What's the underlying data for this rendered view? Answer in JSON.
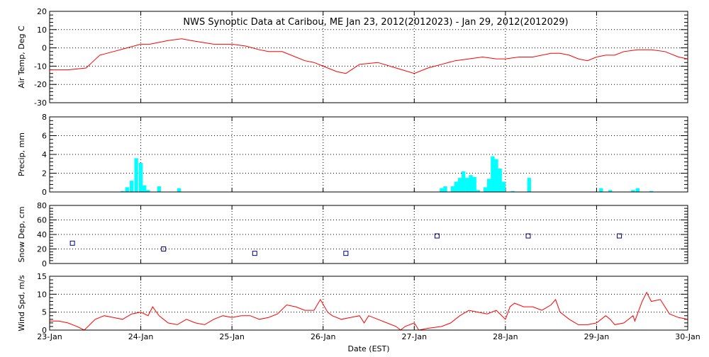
{
  "title": "NWS Synoptic Data at Caribou, ME   Jan 23, 2012(2012023) - Jan 29, 2012(2012029)",
  "xlabel": "Date (EST)",
  "x_ticks": [
    "23-Jan",
    "24-Jan",
    "25-Jan",
    "26-Jan",
    "27-Jan",
    "28-Jan",
    "29-Jan",
    "30-Jan"
  ],
  "colors": {
    "temp": "#ff0000",
    "precip": "#00ffff",
    "snow": "#000080",
    "wind": "#ff0000"
  },
  "chart_data": [
    {
      "type": "line",
      "ylabel": "Air Temp, Deg C",
      "ylim": [
        -30,
        20
      ],
      "yticks": [
        "-30",
        "-20",
        "-10",
        "0",
        "10",
        "20"
      ],
      "grid": true,
      "x_unit": "days since Jan 23, 2012 00:00 EST",
      "x": [
        0.0,
        0.2,
        0.4,
        0.55,
        0.7,
        0.85,
        1.0,
        1.1,
        1.3,
        1.45,
        1.55,
        1.8,
        2.0,
        2.15,
        2.3,
        2.4,
        2.55,
        2.7,
        2.8,
        2.9,
        3.0,
        3.15,
        3.25,
        3.4,
        3.6,
        3.8,
        4.0,
        4.15,
        4.3,
        4.45,
        4.6,
        4.75,
        4.9,
        5.0,
        5.15,
        5.3,
        5.5,
        5.6,
        5.7,
        5.8,
        5.9,
        6.0,
        6.1,
        6.2,
        6.3,
        6.45,
        6.6,
        6.75,
        6.9,
        7.0
      ],
      "values": [
        -12,
        -12,
        -11,
        -4,
        -2,
        0,
        2,
        2,
        4,
        5,
        4,
        2,
        2,
        1,
        -1,
        -2,
        -2,
        -5,
        -7,
        -8,
        -10,
        -13,
        -14,
        -9,
        -8,
        -11,
        -14,
        -11,
        -9,
        -7,
        -6,
        -5,
        -6,
        -6,
        -5,
        -5,
        -3,
        -3,
        -4,
        -6,
        -7,
        -5,
        -4,
        -4,
        -2,
        -1,
        -1,
        -2,
        -5,
        -6
      ]
    },
    {
      "type": "bar",
      "ylabel": "Precip, mm",
      "ylim": [
        0,
        8
      ],
      "yticks": [
        "0",
        "2",
        "4",
        "6",
        "8"
      ],
      "grid": true,
      "x_unit": "days since Jan 23, 2012 00:00 EST",
      "x": [
        0.8,
        0.85,
        0.9,
        0.95,
        1.0,
        1.04,
        1.08,
        1.2,
        1.42,
        4.3,
        4.34,
        4.42,
        4.46,
        4.5,
        4.54,
        4.58,
        4.62,
        4.66,
        4.7,
        4.78,
        4.82,
        4.86,
        4.9,
        4.94,
        4.98,
        5.08,
        5.26,
        6.05,
        6.15,
        6.4,
        6.45,
        6.6
      ],
      "values": [
        0.1,
        0.5,
        1.2,
        3.6,
        3.1,
        0.7,
        0.2,
        0.6,
        0.4,
        0.4,
        0.6,
        0.6,
        1.1,
        1.5,
        2.2,
        1.5,
        1.8,
        1.6,
        0.2,
        0.5,
        1.4,
        3.8,
        3.5,
        2.5,
        1.1,
        0.1,
        1.5,
        0.4,
        0.2,
        0.2,
        0.4,
        0.1
      ]
    },
    {
      "type": "scatter",
      "ylabel": "Snow Dep, cm",
      "ylim": [
        0,
        80
      ],
      "yticks": [
        "0",
        "20",
        "40",
        "60",
        "80"
      ],
      "grid": true,
      "x_unit": "days since Jan 23, 2012 00:00 EST",
      "x": [
        0.25,
        1.25,
        2.25,
        3.25,
        4.25,
        5.25,
        6.25
      ],
      "values": [
        28,
        20,
        14,
        14,
        38,
        38,
        38
      ]
    },
    {
      "type": "line",
      "ylabel": "Wind Spd, m/s",
      "ylim": [
        0,
        15
      ],
      "yticks": [
        "0",
        "5",
        "10",
        "15"
      ],
      "grid": true,
      "x_unit": "days since Jan 23, 2012 00:00 EST",
      "x": [
        0.0,
        0.1,
        0.2,
        0.3,
        0.38,
        0.5,
        0.6,
        0.7,
        0.8,
        0.9,
        1.0,
        1.08,
        1.13,
        1.2,
        1.3,
        1.4,
        1.5,
        1.6,
        1.7,
        1.8,
        1.9,
        2.0,
        2.1,
        2.2,
        2.3,
        2.4,
        2.5,
        2.6,
        2.7,
        2.8,
        2.9,
        2.97,
        3.05,
        3.1,
        3.2,
        3.3,
        3.4,
        3.45,
        3.5,
        3.6,
        3.7,
        3.8,
        3.85,
        3.9,
        4.0,
        4.05,
        4.15,
        4.3,
        4.4,
        4.5,
        4.6,
        4.7,
        4.8,
        4.9,
        5.0,
        5.05,
        5.1,
        5.2,
        5.3,
        5.4,
        5.5,
        5.55,
        5.6,
        5.7,
        5.8,
        5.9,
        6.0,
        6.1,
        6.15,
        6.2,
        6.3,
        6.4,
        6.42,
        6.5,
        6.55,
        6.6,
        6.7,
        6.8,
        6.9,
        7.0
      ],
      "values": [
        2.5,
        2.5,
        2.0,
        1.0,
        0.0,
        3.0,
        4.0,
        3.5,
        3.0,
        4.5,
        5.0,
        4.0,
        6.5,
        4.0,
        2.0,
        1.5,
        3.0,
        2.0,
        1.5,
        3.0,
        4.0,
        3.5,
        4.0,
        4.0,
        3.0,
        3.5,
        4.5,
        7.0,
        6.5,
        5.5,
        5.5,
        8.5,
        5.0,
        4.0,
        3.0,
        3.5,
        4.0,
        2.0,
        4.0,
        3.0,
        2.0,
        1.0,
        0.0,
        1.0,
        2.0,
        0.0,
        0.5,
        1.0,
        2.0,
        4.0,
        5.5,
        5.0,
        4.5,
        5.5,
        3.0,
        6.5,
        7.5,
        6.5,
        6.5,
        5.5,
        7.0,
        8.5,
        5.0,
        3.0,
        1.5,
        1.5,
        2.0,
        4.0,
        3.0,
        1.5,
        2.0,
        4.0,
        2.5,
        8.0,
        10.5,
        8.0,
        8.5,
        4.5,
        3.5,
        3.0
      ]
    }
  ]
}
